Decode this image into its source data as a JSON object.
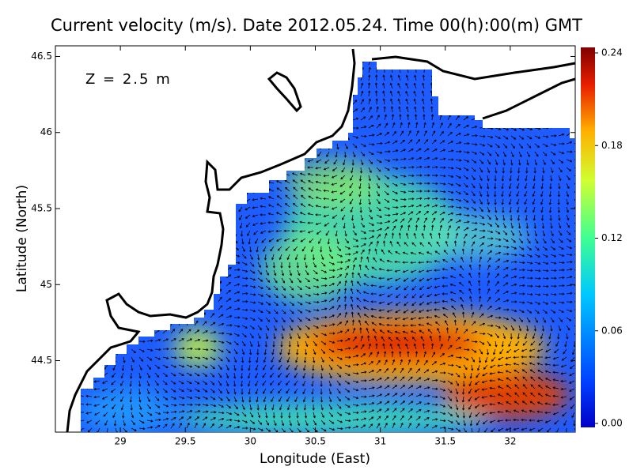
{
  "chart_data": {
    "type": "map",
    "title": "Current velocity (m/s). Date 2012.05.24. Time 00(h):00(m) GMT",
    "x_label": "Longitude (East)",
    "y_label": "Latitude (North)",
    "annotation": "Z = 2.5 m",
    "xlim": [
      28.5,
      32.5
    ],
    "ylim": [
      44.03,
      46.57
    ],
    "xticks": [
      29,
      29.5,
      30,
      30.5,
      31,
      31.5,
      32
    ],
    "yticks": [
      44.5,
      45,
      45.5,
      46,
      46.5
    ],
    "colorbar": {
      "colormap": "jet",
      "lim": [
        0,
        0.24
      ],
      "ticks": [
        {
          "value": 0,
          "label": "0.00"
        },
        0.06,
        0.12,
        0.18,
        0.24
      ]
    }
  }
}
